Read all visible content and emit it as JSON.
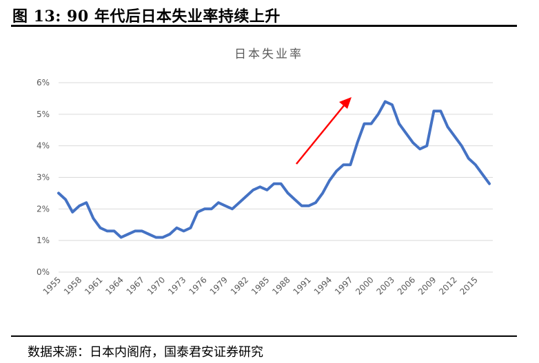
{
  "figure_title": "图 13:  90 年代后日本失业率持续上升",
  "source": "数据来源：日本内阁府，国泰君安证券研究",
  "chart_data": {
    "type": "line",
    "title": "日本失业率",
    "xlabel": "",
    "ylabel": "",
    "ylim": [
      0,
      6
    ],
    "y_ticks": [
      "0%",
      "1%",
      "2%",
      "3%",
      "4%",
      "5%",
      "6%"
    ],
    "x_tick_labels": [
      "1955",
      "1958",
      "1961",
      "1964",
      "1967",
      "1970",
      "1973",
      "1976",
      "1979",
      "1982",
      "1985",
      "1988",
      "1991",
      "1994",
      "1997",
      "2000",
      "2003",
      "2006",
      "2009",
      "2012",
      "2015"
    ],
    "grid": true,
    "legend": "none",
    "line_color": "#4472C4",
    "annotation_arrow_color": "#FF0000",
    "x": [
      1955,
      1956,
      1957,
      1958,
      1959,
      1960,
      1961,
      1962,
      1963,
      1964,
      1965,
      1966,
      1967,
      1968,
      1969,
      1970,
      1971,
      1972,
      1973,
      1974,
      1975,
      1976,
      1977,
      1978,
      1979,
      1980,
      1981,
      1982,
      1983,
      1984,
      1985,
      1986,
      1987,
      1988,
      1989,
      1990,
      1991,
      1992,
      1993,
      1994,
      1995,
      1996,
      1997,
      1998,
      1999,
      2000,
      2001,
      2002,
      2003,
      2004,
      2005,
      2006,
      2007,
      2008,
      2009,
      2010,
      2011,
      2012,
      2013,
      2014,
      2015,
      2016,
      2017
    ],
    "values": [
      2.5,
      2.3,
      1.9,
      2.1,
      2.2,
      1.7,
      1.4,
      1.3,
      1.3,
      1.1,
      1.2,
      1.3,
      1.3,
      1.2,
      1.1,
      1.1,
      1.2,
      1.4,
      1.3,
      1.4,
      1.9,
      2.0,
      2.0,
      2.2,
      2.1,
      2.0,
      2.2,
      2.4,
      2.6,
      2.7,
      2.6,
      2.8,
      2.8,
      2.5,
      2.3,
      2.1,
      2.1,
      2.2,
      2.5,
      2.9,
      3.2,
      3.4,
      3.4,
      4.1,
      4.7,
      4.7,
      5.0,
      5.4,
      5.3,
      4.7,
      4.4,
      4.1,
      3.9,
      4.0,
      5.1,
      5.1,
      4.6,
      4.3,
      4.0,
      3.6,
      3.4,
      3.1,
      2.8
    ]
  }
}
